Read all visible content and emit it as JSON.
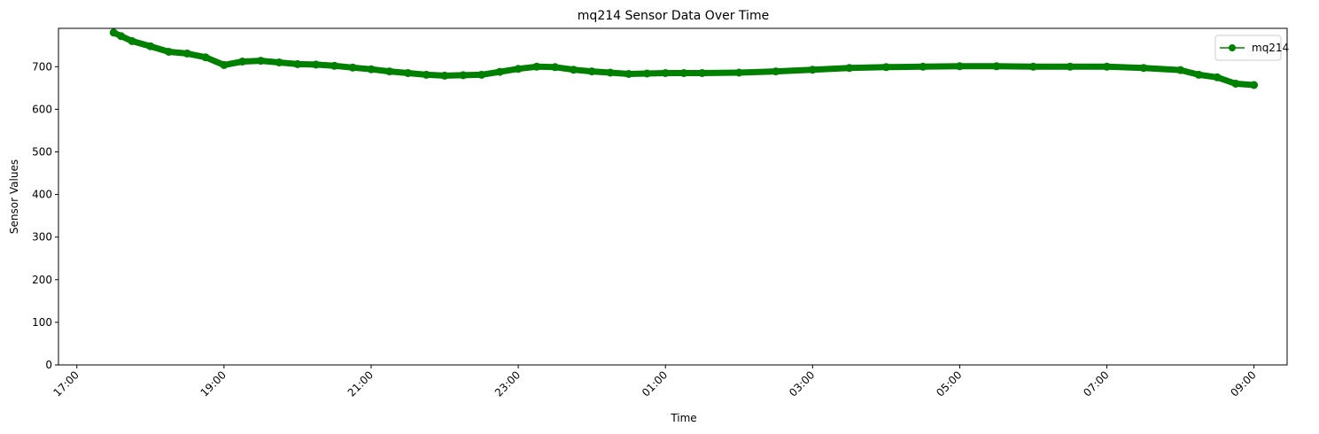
{
  "chart_data": {
    "type": "line",
    "title": "mq214 Sensor Data Over Time",
    "xlabel": "Time",
    "ylabel": "Sensor Values",
    "x_tick_labels": [
      "17:00",
      "19:00",
      "21:00",
      "23:00",
      "01:00",
      "03:00",
      "05:00",
      "07:00",
      "09:00"
    ],
    "x_ticks_hours": [
      0,
      2,
      4,
      6,
      8,
      10,
      12,
      14,
      16
    ],
    "xlim_hours": [
      -0.25,
      16.45
    ],
    "y_ticks": [
      0,
      100,
      200,
      300,
      400,
      500,
      600,
      700
    ],
    "ylim": [
      0,
      790
    ],
    "grid": false,
    "legend_position": "top-right",
    "series": [
      {
        "name": "mq214",
        "color": "#008000",
        "marker": "circle",
        "x_hours": [
          0.5,
          0.6,
          0.75,
          1.0,
          1.25,
          1.5,
          1.75,
          2.0,
          2.25,
          2.5,
          2.75,
          3.0,
          3.25,
          3.5,
          3.75,
          4.0,
          4.25,
          4.5,
          4.75,
          5.0,
          5.25,
          5.5,
          5.75,
          6.0,
          6.25,
          6.5,
          6.75,
          7.0,
          7.25,
          7.5,
          7.75,
          8.0,
          8.25,
          8.5,
          9.0,
          9.5,
          10.0,
          10.5,
          11.0,
          11.5,
          12.0,
          12.5,
          13.0,
          13.5,
          14.0,
          14.5,
          15.0,
          15.25,
          15.5,
          15.75,
          16.0
        ],
        "values": [
          780,
          772,
          760,
          748,
          735,
          731,
          722,
          704,
          712,
          714,
          710,
          706,
          705,
          702,
          698,
          694,
          689,
          685,
          681,
          679,
          680,
          681,
          688,
          695,
          700,
          699,
          693,
          689,
          686,
          683,
          684,
          685,
          685,
          685,
          686,
          689,
          693,
          697,
          699,
          700,
          701,
          701,
          700,
          700,
          700,
          697,
          692,
          681,
          675,
          660,
          657
        ]
      }
    ]
  }
}
